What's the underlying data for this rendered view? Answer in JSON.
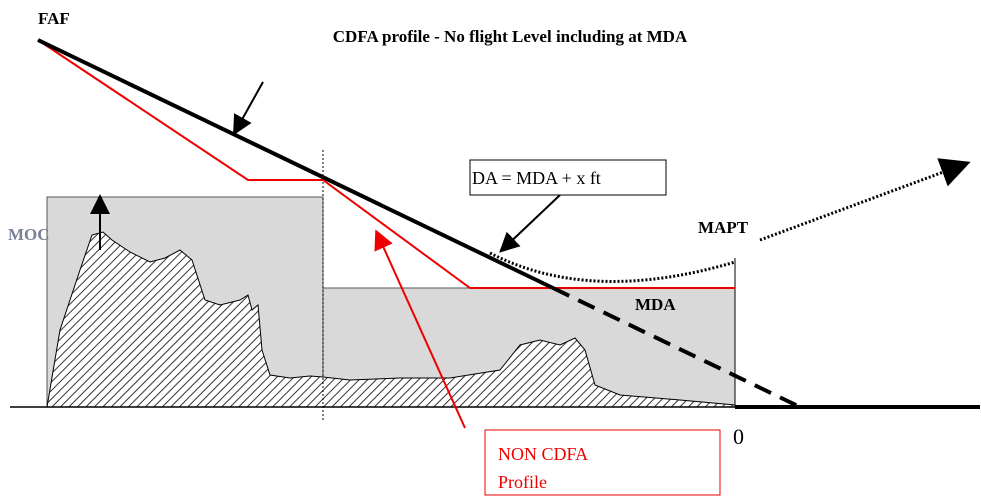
{
  "title": "CDFA profile - No flight Level including at MDA",
  "labels": {
    "faf": "FAF",
    "moc": "MOC",
    "mapt": "MAPT",
    "mda": "MDA",
    "zero": "0"
  },
  "da_box": "DA = MDA + x ft",
  "non_cdfa_box": [
    "NON CDFA",
    "Profile"
  ]
}
